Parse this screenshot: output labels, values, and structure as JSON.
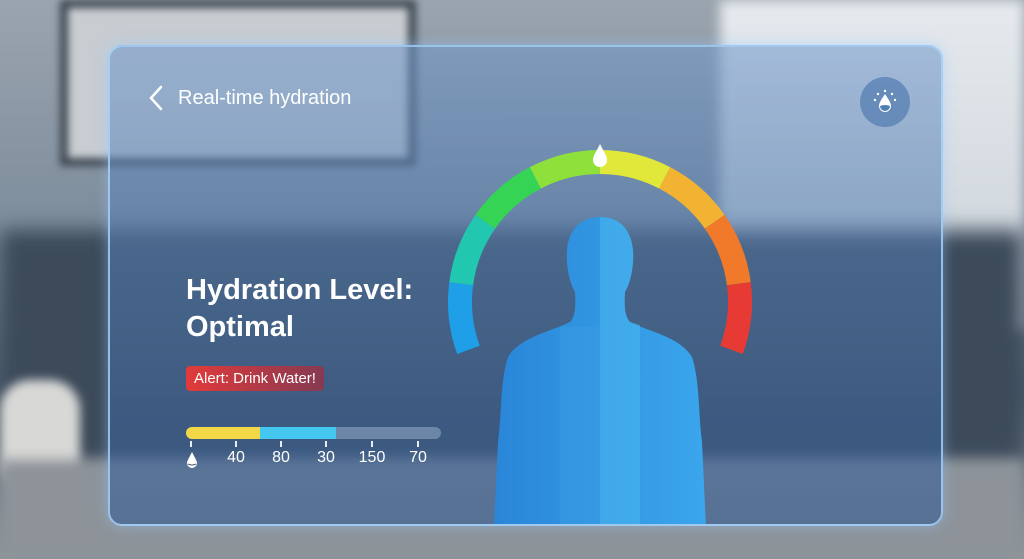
{
  "header": {
    "back_label": "Real-time hydration",
    "back_icon": "chevron-left-icon",
    "action_icon": "water-drop-icon"
  },
  "status": {
    "title_line1": "Hydration Level:",
    "title_line2": "Optimal"
  },
  "alert": {
    "text": "Alert: Drink Water!",
    "color": "#e23a3a"
  },
  "progress": {
    "segments": [
      {
        "color": "#f2d846",
        "fraction": 0.29
      },
      {
        "color": "#45c8f0",
        "fraction": 0.3
      }
    ],
    "tick_labels": [
      "40",
      "80",
      "30",
      "150",
      "70"
    ],
    "start_icon": "water-drop-icon"
  },
  "gauge": {
    "colors": [
      "#1e9fe8",
      "#22c7b0",
      "#35d455",
      "#8ee03a",
      "#e2e83a",
      "#f2b232",
      "#f07a2a",
      "#e83a35"
    ],
    "marker_icon": "water-drop-icon"
  }
}
